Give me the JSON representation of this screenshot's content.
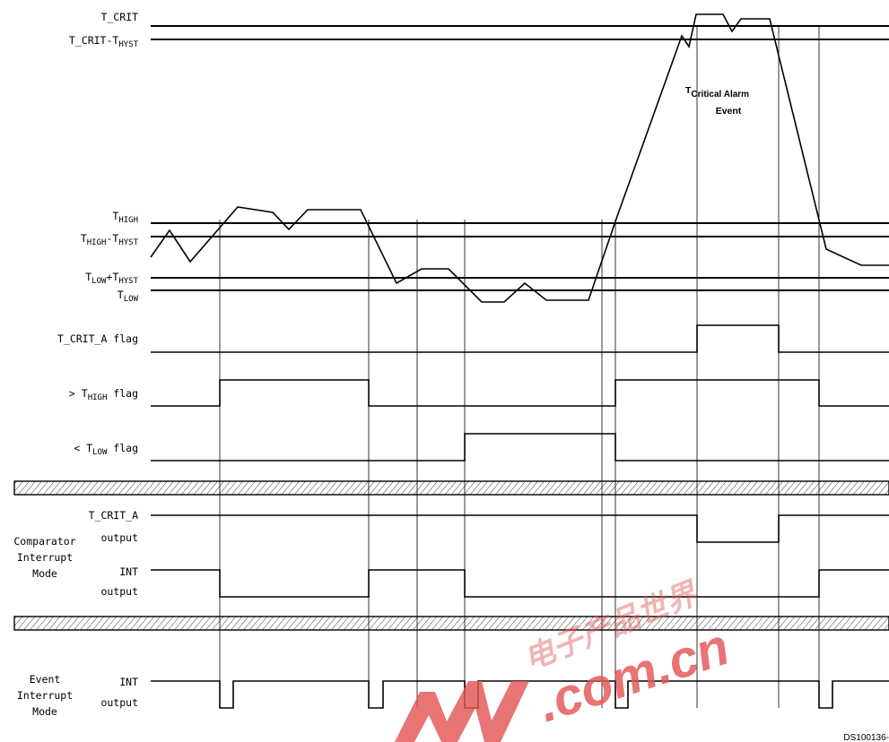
{
  "levels": {
    "t_crit": "T_CRIT",
    "t_crit_minus_hyst": {
      "base": "T_CRIT-T",
      "sub": "HYST"
    },
    "t_high": {
      "base": "T",
      "sub": "HIGH"
    },
    "t_high_minus_hyst": {
      "base1": "T",
      "sub1": "HIGH",
      "mid": "-T",
      "sub2": "HYST"
    },
    "t_low_plus_hyst": {
      "base1": "T",
      "sub1": "LOW",
      "mid": "+T",
      "sub2": "HYST"
    },
    "t_low": {
      "base": "T",
      "sub": "LOW"
    }
  },
  "event_note": {
    "t": "T",
    "sub": "Critical Alarm",
    "line2": "Event"
  },
  "flags": {
    "tcrit_a": "T_CRIT_A flag",
    "high": {
      "prefix": "> T",
      "sub": "HIGH",
      "suffix": " flag"
    },
    "low": {
      "prefix": "< T",
      "sub": "LOW",
      "suffix": " flag"
    }
  },
  "comparator": {
    "mode_lines": [
      "Comparator",
      "Interrupt",
      "Mode"
    ],
    "tcrit_a_label": "T_CRIT_A",
    "tcrit_a_output": "output",
    "int_label": "INT",
    "int_output": "output"
  },
  "event": {
    "mode_lines": [
      "Event",
      "Interrupt",
      "Mode"
    ],
    "int_label": "INT",
    "int_output": "output"
  },
  "watermark": {
    "text": ".com.cn",
    "chinese": "电子产品世界"
  },
  "figure_ref": "DS100136-",
  "colors": {
    "line": "#000000",
    "watermark": "#e35656"
  }
}
